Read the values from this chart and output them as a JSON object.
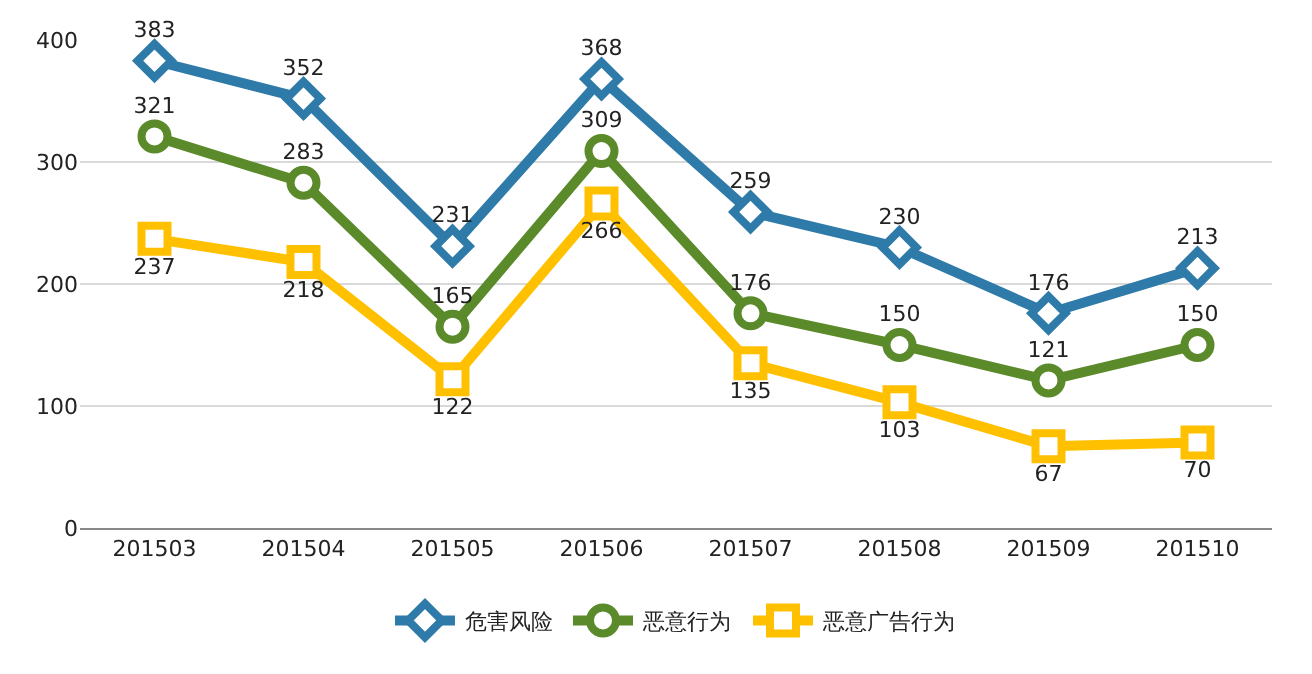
{
  "chart_data": {
    "type": "line",
    "categories": [
      "201503",
      "201504",
      "201505",
      "201506",
      "201507",
      "201508",
      "201509",
      "201510"
    ],
    "series": [
      {
        "name": "危害风险",
        "color": "#2e7aa8",
        "marker": "diamond",
        "values": [
          383,
          352,
          231,
          368,
          259,
          230,
          176,
          213
        ]
      },
      {
        "name": "恶意行为",
        "color": "#5a8a2a",
        "marker": "circle",
        "values": [
          321,
          283,
          165,
          309,
          176,
          150,
          121,
          150
        ]
      },
      {
        "name": "恶意广告行为",
        "color": "#ffc000",
        "marker": "square",
        "values": [
          237,
          218,
          122,
          266,
          135,
          103,
          67,
          70
        ]
      }
    ],
    "ylim": [
      0,
      400
    ],
    "yticks": [
      0,
      100,
      200,
      300,
      400
    ],
    "grid": "y",
    "legend": "bottom",
    "data_labels": true
  }
}
